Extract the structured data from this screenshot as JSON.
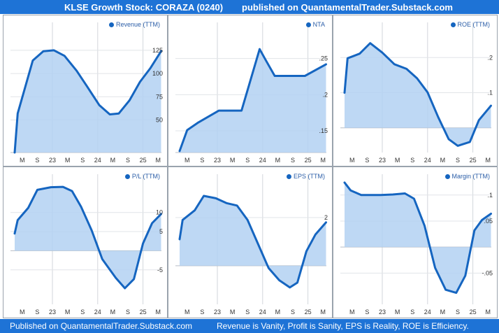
{
  "header": {
    "title": "KLSE Growth Stock: CORAZA (0240)",
    "published": "published on QuantamentalTrader.Substack.com"
  },
  "footer": {
    "published": "Published on QuantamentalTrader.Substack.com",
    "motto": "Revenue is Vanity, Profit is Sanity, EPS is Reality, ROE is Efficiency."
  },
  "colors": {
    "accent": "#1e73d6",
    "line": "#1565c0",
    "fill": "#b3d1f2"
  },
  "chart_data": [
    {
      "type": "area",
      "legend": "Revenue (TTM)",
      "x_tick_labels": [
        "M",
        "S",
        "23",
        "M",
        "S",
        "24",
        "M",
        "S",
        "25",
        "M"
      ],
      "x_year_ticks": [
        2.5,
        5.5,
        8.5
      ],
      "y_ticks": [
        50,
        75,
        100,
        125
      ],
      "ylim": [
        15,
        155
      ],
      "x": [
        0,
        0.2,
        1.2,
        1.9,
        2.6,
        3.3,
        4.1,
        4.8,
        5.6,
        6.3,
        6.9,
        7.6,
        8.3,
        9.0,
        9.7
      ],
      "values": [
        15,
        57,
        114,
        124,
        125,
        119,
        103,
        86,
        66,
        56,
        57,
        71,
        91,
        106,
        124
      ]
    },
    {
      "type": "area",
      "legend": "NTA",
      "x_tick_labels": [
        "M",
        "S",
        "23",
        "M",
        "S",
        "24",
        "M",
        "S",
        "25",
        "M"
      ],
      "x_year_ticks": [
        2.5,
        5.5,
        8.5
      ],
      "y_ticks": [
        0.15,
        0.2,
        0.25
      ],
      "y_tick_labels": [
        ".15",
        ".2",
        ".25"
      ],
      "ylim": [
        0.12,
        0.3
      ],
      "x": [
        0,
        0.5,
        1.2,
        2.6,
        4.1,
        5.3,
        5.7,
        6.3,
        7.0,
        8.3,
        9.7
      ],
      "values": [
        0.122,
        0.151,
        0.161,
        0.178,
        0.178,
        0.263,
        0.248,
        0.226,
        0.226,
        0.226,
        0.242
      ]
    },
    {
      "type": "area",
      "legend": "ROE (TTM)",
      "x_tick_labels": [
        "M",
        "S",
        "23",
        "M",
        "S",
        "24",
        "M",
        "S",
        "25",
        "M"
      ],
      "x_year_ticks": [
        2.5,
        5.5,
        8.5
      ],
      "y_ticks": [
        0.1,
        0.2
      ],
      "y_tick_labels": [
        ".1",
        ".2"
      ],
      "ylim": [
        -0.07,
        0.3
      ],
      "x": [
        0,
        0.2,
        1.0,
        1.7,
        2.5,
        3.3,
        4.1,
        4.8,
        5.5,
        6.2,
        6.9,
        7.5,
        8.3,
        8.9,
        9.7
      ],
      "values": [
        0.1,
        0.198,
        0.211,
        0.241,
        0.214,
        0.181,
        0.168,
        0.141,
        0.101,
        0.031,
        -0.032,
        -0.051,
        -0.04,
        0.022,
        0.063
      ]
    },
    {
      "type": "area",
      "legend": "P/L (TTM)",
      "x_tick_labels": [
        "M",
        "S",
        "23",
        "M",
        "S",
        "24",
        "M",
        "S",
        "25",
        "M"
      ],
      "x_year_ticks": [
        2.5,
        5.5,
        8.5
      ],
      "y_ticks": [
        -5,
        5,
        10
      ],
      "ylim": [
        -14,
        20
      ],
      "x": [
        0,
        0.2,
        0.9,
        1.5,
        2.4,
        3.2,
        3.8,
        4.4,
        5.1,
        5.8,
        6.7,
        7.3,
        7.9,
        8.5,
        9.1,
        9.7
      ],
      "values": [
        4.5,
        8.0,
        11.2,
        15.9,
        16.6,
        16.7,
        15.6,
        11.5,
        5.3,
        -2.2,
        -7.1,
        -9.8,
        -7.4,
        1.9,
        7.2,
        9.6
      ]
    },
    {
      "type": "area",
      "legend": "EPS (TTM)",
      "x_tick_labels": [
        "M",
        "S",
        "23",
        "M",
        "S",
        "24",
        "M",
        "S",
        "25",
        "M"
      ],
      "x_year_ticks": [
        2.5,
        5.5,
        8.5
      ],
      "y_ticks": [
        2
      ],
      "ylim": [
        -1.6,
        3.8
      ],
      "x": [
        0,
        0.2,
        1.0,
        1.6,
        2.4,
        3.1,
        3.8,
        4.5,
        5.2,
        5.9,
        6.6,
        7.3,
        7.8,
        8.4,
        9.0,
        9.7
      ],
      "values": [
        1.1,
        1.9,
        2.3,
        2.9,
        2.8,
        2.6,
        2.5,
        1.9,
        0.9,
        -0.1,
        -0.6,
        -0.9,
        -0.7,
        0.6,
        1.3,
        1.8
      ]
    },
    {
      "type": "area",
      "legend": "Margin (TTM)",
      "x_tick_labels": [
        "M",
        "S",
        "23",
        "M",
        "S",
        "24",
        "M",
        "S",
        "25",
        "M"
      ],
      "x_year_ticks": [
        2.5,
        5.5,
        8.5
      ],
      "y_ticks": [
        -0.05,
        0.05,
        0.1
      ],
      "y_tick_labels": [
        "-.05",
        ".05",
        ".1"
      ],
      "ylim": [
        -0.11,
        0.14
      ],
      "x": [
        0,
        0.4,
        1.1,
        1.7,
        2.4,
        3.2,
        4.0,
        4.6,
        5.3,
        6.0,
        6.7,
        7.4,
        8.0,
        8.6,
        9.1,
        9.7
      ],
      "values": [
        0.124,
        0.109,
        0.1,
        0.1,
        0.1,
        0.101,
        0.103,
        0.093,
        0.041,
        -0.04,
        -0.082,
        -0.088,
        -0.055,
        0.032,
        0.052,
        0.064
      ]
    }
  ]
}
